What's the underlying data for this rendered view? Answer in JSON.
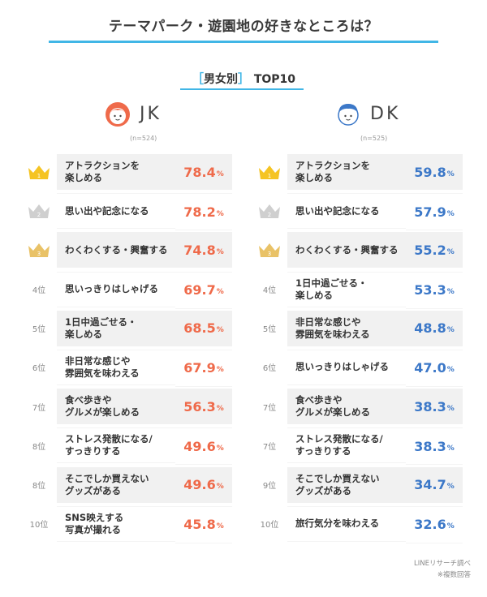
{
  "title": "テーマパーク・遊園地の好きなところは？",
  "subtitle": {
    "bracket_open": "［",
    "bracket_text": "男女別",
    "bracket_close": "］",
    "suffix": " TOP10"
  },
  "colors": {
    "accent": "#41b6e6",
    "jk": "#ef6a4a",
    "dk": "#3c78c8",
    "gold": "#f5c423",
    "silver": "#cfcfcf",
    "bronze": "#e9c267"
  },
  "source": {
    "line1": "LINEリサーチ調べ",
    "line2": "※複数回答"
  },
  "chart_data": [
    {
      "type": "table",
      "title": "JK",
      "n": "(n=524)",
      "unit": "%",
      "rows": [
        {
          "rank": "1",
          "rank_label": "1",
          "medal": "gold",
          "item": "アトラクションを\n楽しめる",
          "value": 78.4,
          "value_text": "78.4"
        },
        {
          "rank": "2",
          "rank_label": "2",
          "medal": "silver",
          "item": "思い出や記念になる",
          "value": 78.2,
          "value_text": "78.2"
        },
        {
          "rank": "3",
          "rank_label": "3",
          "medal": "bronze",
          "item": "わくわくする・興奮する",
          "value": 74.8,
          "value_text": "74.8"
        },
        {
          "rank": "4",
          "rank_label": "4位",
          "medal": "",
          "item": "思いっきりはしゃげる",
          "value": 69.7,
          "value_text": "69.7"
        },
        {
          "rank": "5",
          "rank_label": "5位",
          "medal": "",
          "item": "1日中過ごせる・\n楽しめる",
          "value": 68.5,
          "value_text": "68.5"
        },
        {
          "rank": "6",
          "rank_label": "6位",
          "medal": "",
          "item": "非日常な感じや\n雰囲気を味わえる",
          "value": 67.9,
          "value_text": "67.9"
        },
        {
          "rank": "7",
          "rank_label": "7位",
          "medal": "",
          "item": "食べ歩きや\nグルメが楽しめる",
          "value": 56.3,
          "value_text": "56.3"
        },
        {
          "rank": "8",
          "rank_label": "8位",
          "medal": "",
          "item": "ストレス発散になる/\nすっきりする",
          "value": 49.6,
          "value_text": "49.6"
        },
        {
          "rank": "8",
          "rank_label": "8位",
          "medal": "",
          "item": "そこでしか買えない\nグッズがある",
          "value": 49.6,
          "value_text": "49.6"
        },
        {
          "rank": "10",
          "rank_label": "10位",
          "medal": "",
          "item": "SNS映えする\n写真が撮れる",
          "value": 45.8,
          "value_text": "45.8"
        }
      ]
    },
    {
      "type": "table",
      "title": "DK",
      "n": "(n=525)",
      "unit": "%",
      "rows": [
        {
          "rank": "1",
          "rank_label": "1",
          "medal": "gold",
          "item": "アトラクションを\n楽しめる",
          "value": 59.8,
          "value_text": "59.8"
        },
        {
          "rank": "2",
          "rank_label": "2",
          "medal": "silver",
          "item": "思い出や記念になる",
          "value": 57.9,
          "value_text": "57.9"
        },
        {
          "rank": "3",
          "rank_label": "3",
          "medal": "bronze",
          "item": "わくわくする・興奮する",
          "value": 55.2,
          "value_text": "55.2"
        },
        {
          "rank": "4",
          "rank_label": "4位",
          "medal": "",
          "item": "1日中過ごせる・\n楽しめる",
          "value": 53.3,
          "value_text": "53.3"
        },
        {
          "rank": "5",
          "rank_label": "5位",
          "medal": "",
          "item": "非日常な感じや\n雰囲気を味わえる",
          "value": 48.8,
          "value_text": "48.8"
        },
        {
          "rank": "6",
          "rank_label": "6位",
          "medal": "",
          "item": "思いっきりはしゃげる",
          "value": 47.0,
          "value_text": "47.0"
        },
        {
          "rank": "7",
          "rank_label": "7位",
          "medal": "",
          "item": "食べ歩きや\nグルメが楽しめる",
          "value": 38.3,
          "value_text": "38.3"
        },
        {
          "rank": "7",
          "rank_label": "7位",
          "medal": "",
          "item": "ストレス発散になる/\nすっきりする",
          "value": 38.3,
          "value_text": "38.3"
        },
        {
          "rank": "9",
          "rank_label": "9位",
          "medal": "",
          "item": "そこでしか買えない\nグッズがある",
          "value": 34.7,
          "value_text": "34.7"
        },
        {
          "rank": "10",
          "rank_label": "10位",
          "medal": "",
          "item": "旅行気分を味わえる",
          "value": 32.6,
          "value_text": "32.6"
        }
      ]
    }
  ]
}
